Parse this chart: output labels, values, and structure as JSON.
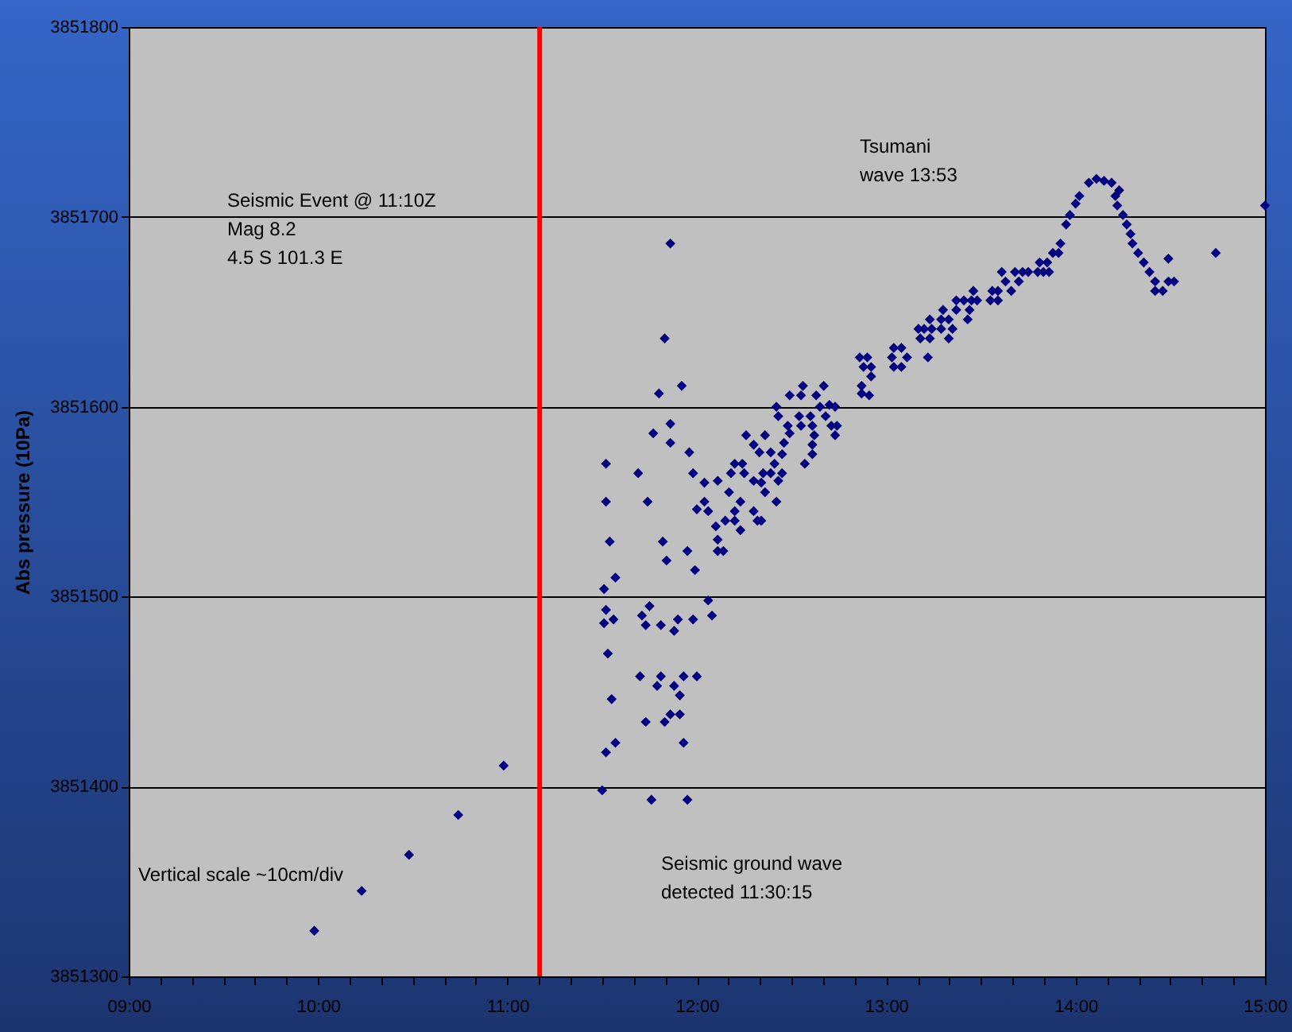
{
  "chart_data": {
    "type": "scatter",
    "ylabel": "Abs pressure (10Pa)",
    "xlim": [
      9,
      15
    ],
    "ylim": [
      3851300,
      3851800
    ],
    "xticks": [
      {
        "value": 9,
        "label": "09:00"
      },
      {
        "value": 9.1667,
        "label": null
      },
      {
        "value": 9.3333,
        "label": null
      },
      {
        "value": 9.5,
        "label": null
      },
      {
        "value": 9.6667,
        "label": null
      },
      {
        "value": 9.8333,
        "label": null
      },
      {
        "value": 10,
        "label": "10:00"
      },
      {
        "value": 10.1667,
        "label": null
      },
      {
        "value": 10.3333,
        "label": null
      },
      {
        "value": 10.5,
        "label": null
      },
      {
        "value": 10.6667,
        "label": null
      },
      {
        "value": 10.8333,
        "label": null
      },
      {
        "value": 11,
        "label": "11:00"
      },
      {
        "value": 11.1667,
        "label": null
      },
      {
        "value": 11.3333,
        "label": null
      },
      {
        "value": 11.5,
        "label": null
      },
      {
        "value": 11.6667,
        "label": null
      },
      {
        "value": 11.8333,
        "label": null
      },
      {
        "value": 12,
        "label": "12:00"
      },
      {
        "value": 12.1667,
        "label": null
      },
      {
        "value": 12.3333,
        "label": null
      },
      {
        "value": 12.5,
        "label": null
      },
      {
        "value": 12.6667,
        "label": null
      },
      {
        "value": 12.8333,
        "label": null
      },
      {
        "value": 13,
        "label": "13:00"
      },
      {
        "value": 13.1667,
        "label": null
      },
      {
        "value": 13.3333,
        "label": null
      },
      {
        "value": 13.5,
        "label": null
      },
      {
        "value": 13.6667,
        "label": null
      },
      {
        "value": 13.8333,
        "label": null
      },
      {
        "value": 14,
        "label": "14:00"
      },
      {
        "value": 14.1667,
        "label": null
      },
      {
        "value": 14.3333,
        "label": null
      },
      {
        "value": 14.5,
        "label": null
      },
      {
        "value": 14.6667,
        "label": null
      },
      {
        "value": 14.8333,
        "label": null
      },
      {
        "value": 15,
        "label": "15:00"
      }
    ],
    "yticks": [
      3851300,
      3851400,
      3851500,
      3851600,
      3851700,
      3851800
    ],
    "grid": "y",
    "marker": "diamond",
    "series": [
      {
        "color": "#000080",
        "x": [
          9.98,
          10.23,
          10.48,
          10.74,
          10.98,
          11.86,
          11.83,
          11.92,
          11.8,
          11.86,
          11.77,
          11.86,
          11.96,
          11.52,
          11.69,
          11.98,
          11.52,
          11.74,
          11.54,
          11.82,
          11.84,
          11.95,
          11.99,
          11.57,
          11.51,
          12.06,
          11.52,
          11.75,
          11.56,
          11.51,
          11.71,
          11.73,
          11.81,
          11.9,
          11.88,
          11.98,
          12.08,
          11.53,
          11.7,
          11.81,
          11.93,
          12.0,
          11.79,
          11.88,
          11.91,
          11.55,
          11.73,
          11.83,
          11.86,
          11.91,
          11.93,
          11.57,
          11.52,
          11.5,
          11.76,
          11.95,
          12.11,
          12.14,
          12.11,
          12.1,
          12.15,
          12.2,
          12.23,
          12.0,
          12.04,
          12.06,
          12.17,
          12.2,
          12.23,
          12.3,
          12.32,
          12.34,
          12.36,
          12.34,
          12.3,
          12.11,
          12.04,
          12.18,
          12.2,
          12.24,
          12.25,
          12.33,
          12.3,
          12.26,
          12.36,
          12.39,
          12.35,
          12.39,
          12.41,
          12.43,
          12.42,
          12.45,
          12.45,
          12.46,
          12.49,
          12.48,
          12.43,
          12.42,
          12.49,
          12.56,
          12.55,
          12.67,
          12.63,
          12.54,
          12.55,
          12.6,
          12.61,
          12.62,
          12.61,
          12.61,
          12.57,
          12.65,
          12.7,
          12.73,
          12.68,
          12.71,
          12.74,
          12.73,
          12.86,
          12.9,
          12.88,
          12.92,
          12.92,
          12.87,
          12.91,
          12.87,
          13.04,
          13.08,
          13.03,
          13.11,
          13.04,
          13.08,
          13.22,
          13.17,
          13.2,
          13.18,
          13.23,
          13.24,
          13.23,
          13.29,
          13.3,
          13.33,
          13.33,
          13.29,
          13.35,
          13.37,
          13.37,
          13.41,
          13.45,
          13.43,
          13.44,
          13.46,
          13.48,
          13.55,
          13.56,
          13.59,
          13.59,
          13.61,
          13.63,
          13.66,
          13.68,
          13.7,
          13.72,
          13.75,
          13.8,
          13.83,
          13.86,
          13.81,
          13.85,
          13.88,
          13.91,
          13.92,
          13.95,
          13.97,
          14.0,
          14.02,
          14.07,
          14.11,
          14.15,
          14.19,
          14.23,
          14.21,
          14.22,
          14.25,
          14.27,
          14.29,
          14.3,
          14.33,
          14.36,
          14.39,
          14.42,
          14.42,
          14.46,
          14.49,
          14.52,
          14.49,
          14.74,
          15.0
        ],
        "values": [
          3851324,
          3851345,
          3851364,
          3851385,
          3851411,
          3851686,
          3851636,
          3851611,
          3851607,
          3851591,
          3851586,
          3851581,
          3851576,
          3851570,
          3851565,
          3851565,
          3851550,
          3851550,
          3851529,
          3851529,
          3851519,
          3851524,
          3851514,
          3851510,
          3851504,
          3851498,
          3851493,
          3851495,
          3851488,
          3851486,
          3851490,
          3851485,
          3851485,
          3851488,
          3851482,
          3851488,
          3851490,
          3851470,
          3851458,
          3851458,
          3851458,
          3851458,
          3851453,
          3851453,
          3851448,
          3851446,
          3851434,
          3851434,
          3851438,
          3851438,
          3851423,
          3851423,
          3851418,
          3851398,
          3851393,
          3851393,
          3851524,
          3851524,
          3851530,
          3851537,
          3851540,
          3851540,
          3851535,
          3851546,
          3851550,
          3851545,
          3851555,
          3851545,
          3851550,
          3851545,
          3851540,
          3851540,
          3851555,
          3851560,
          3851561,
          3851561,
          3851560,
          3851565,
          3851570,
          3851570,
          3851565,
          3851576,
          3851580,
          3851585,
          3851585,
          3851576,
          3851565,
          3851565,
          3851570,
          3851561,
          3851550,
          3851565,
          3851575,
          3851581,
          3851586,
          3851590,
          3851595,
          3851600,
          3851606,
          3851611,
          3851606,
          3851611,
          3851606,
          3851595,
          3851590,
          3851595,
          3851590,
          3851585,
          3851580,
          3851575,
          3851570,
          3851600,
          3851601,
          3851600,
          3851595,
          3851590,
          3851590,
          3851585,
          3851626,
          3851626,
          3851621,
          3851621,
          3851616,
          3851607,
          3851606,
          3851611,
          3851631,
          3851631,
          3851626,
          3851626,
          3851621,
          3851621,
          3851626,
          3851641,
          3851641,
          3851636,
          3851636,
          3851641,
          3851646,
          3851646,
          3851651,
          3851646,
          3851636,
          3851641,
          3851641,
          3851656,
          3851651,
          3851656,
          3851656,
          3851646,
          3851651,
          3851661,
          3851656,
          3851656,
          3851661,
          3851661,
          3851656,
          3851671,
          3851666,
          3851661,
          3851671,
          3851666,
          3851671,
          3851671,
          3851671,
          3851671,
          3851671,
          3851676,
          3851676,
          3851681,
          3851681,
          3851686,
          3851696,
          3851701,
          3851707,
          3851711,
          3851718,
          3851720,
          3851719,
          3851718,
          3851714,
          3851711,
          3851706,
          3851701,
          3851696,
          3851691,
          3851686,
          3851681,
          3851676,
          3851671,
          3851666,
          3851661,
          3851661,
          3851666,
          3851666,
          3851678,
          3851681,
          3851706
        ]
      }
    ],
    "ref_lines": [
      {
        "axis": "x",
        "value": 11.17,
        "color": "#ff0000"
      }
    ],
    "annotations": [
      "Seismic Event @ 11:10Z\nMag 8.2\n4.5 S  101.3 E",
      "Tsumani\nwave 13:53",
      "Seismic ground wave\ndetected 11:30:15",
      "Vertical scale ~10cm/div"
    ]
  }
}
